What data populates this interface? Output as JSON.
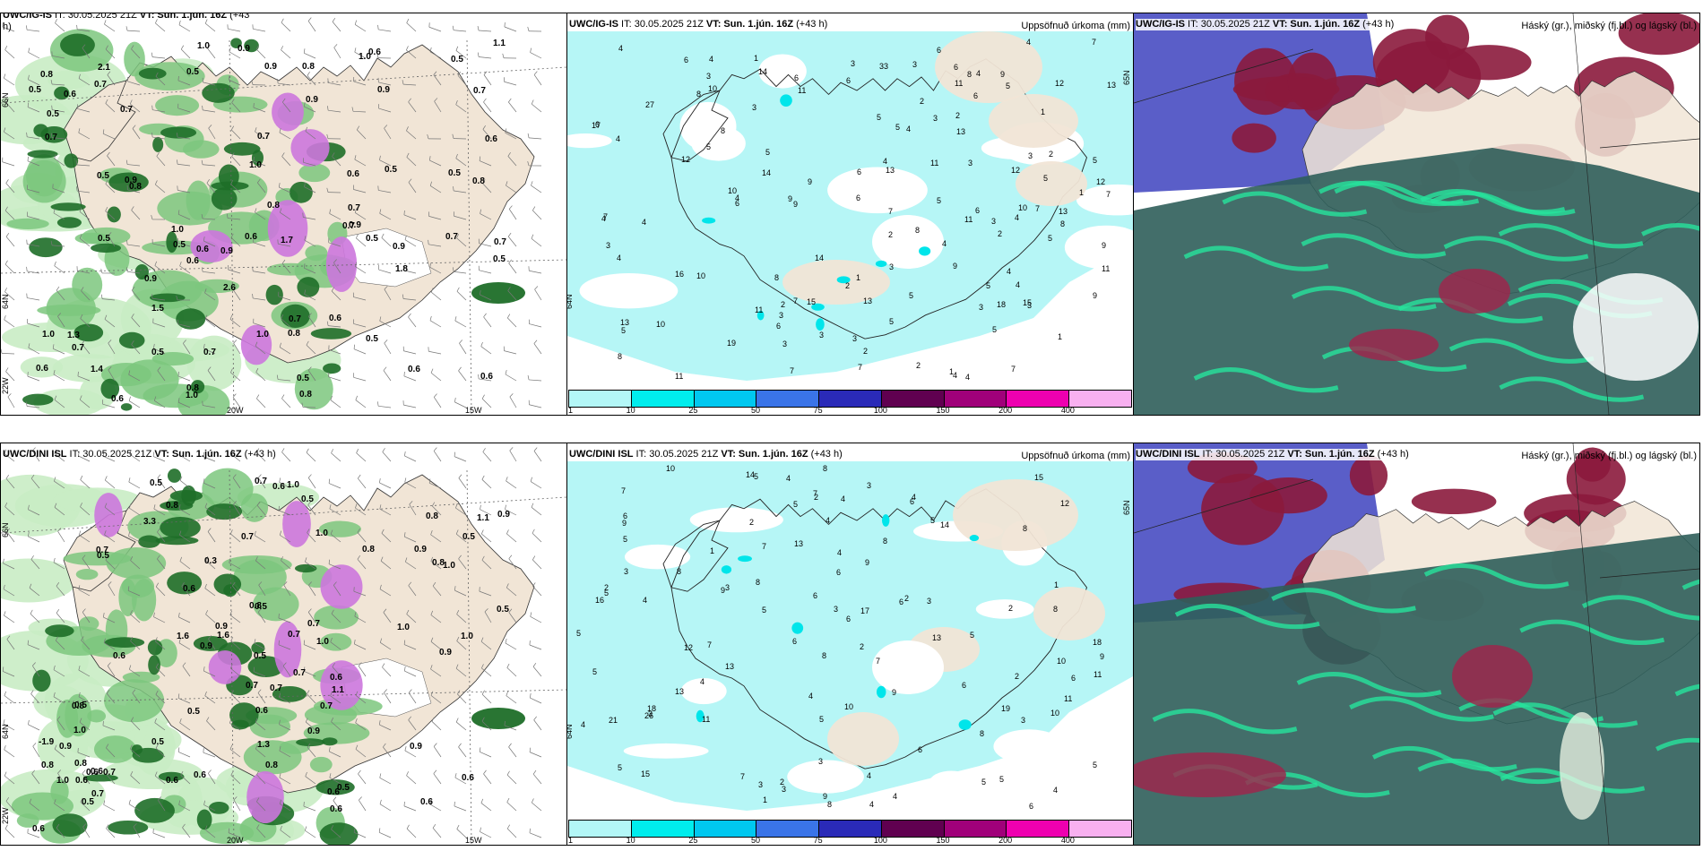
{
  "panels": {
    "p1": {
      "model": "UWC/IG-IS",
      "info": " IT: 30.05.2025 21Z ",
      "vt": "VT: Sun. 1.jún. 16Z",
      "lead": " (+43",
      "lead2": "h)"
    },
    "p2": {
      "model": "UWC/IG-IS",
      "info": " IT: 30.05.2025 21Z ",
      "vt": "VT: Sun. 1.jún. 16Z",
      "lead": " (+43 h)",
      "right": "Uppsöfnuð úrkoma (mm)"
    },
    "p3": {
      "model": "UWC/IG-IS",
      "info": " IT: 30.05.2025 21Z ",
      "vt": "VT: Sun. 1.jún. 16Z",
      "lead": " (+43 h)",
      "right": "Háský (gr.), miðský (fj.bl.) og lágský (bl.)"
    },
    "p4": {
      "model": "UWC/DINI ISL",
      "info": " IT: 30.05.2025 21Z ",
      "vt": "VT: Sun. 1.jún. 16Z",
      "lead": " (+43 h)"
    },
    "p5": {
      "model": "UWC/DINI ISL",
      "info": " IT: 30.05.2025 21Z ",
      "vt": "VT: Sun. 1.jún. 16Z",
      "lead": " (+43 h)",
      "right": "Uppsöfnuð úrkoma (mm)"
    },
    "p6": {
      "model": "UWC/DINI ISL",
      "info": " IT: 30.05.2025 21Z ",
      "vt": "VT: Sun. 1.jún. 16Z",
      "lead": " (+43 h)",
      "right": "Háský (gr.), miðský (fj.bl.) og lágský (bl.)"
    }
  },
  "axes": {
    "lat_66": "66N",
    "lat_64": "64N",
    "lon_22": "22W",
    "lon_20": "20W",
    "lon_15": "15W",
    "lat_65": "65N"
  },
  "colorbar": {
    "ticks": [
      "1",
      "10",
      "25",
      "50",
      "75",
      "100",
      "150",
      "200",
      "400"
    ],
    "colors": [
      "#b3f7f7",
      "#00eded",
      "#00c8f0",
      "#3a74e8",
      "#2a2ab8",
      "#600050",
      "#a0007a",
      "#ee00b0",
      "#f8b0f0"
    ]
  },
  "colors": {
    "land": "#f1e5d6",
    "precip_light": "#b6f6f6",
    "green_light": "#c9ecc4",
    "green_dark": "#1e6e28",
    "purple": "#cc77dd"
  },
  "precip_values_p2": [
    "3",
    "5",
    "5",
    "6",
    "5",
    "4",
    "7",
    "4",
    "3",
    "2",
    "1",
    "5",
    "4",
    "13",
    "5",
    "12",
    "8",
    "6",
    "9",
    "10",
    "11",
    "13",
    "10",
    "4",
    "6",
    "5",
    "7",
    "8",
    "6",
    "11",
    "8",
    "7",
    "11",
    "6",
    "12",
    "11",
    "9",
    "5",
    "10",
    "8",
    "9",
    "7",
    "11",
    "13",
    "3",
    "4",
    "6",
    "8",
    "6",
    "2",
    "5",
    "18",
    "9",
    "27",
    "16",
    "12",
    "13",
    "10",
    "4",
    "5",
    "6",
    "5",
    "7",
    "6",
    "14",
    "12",
    "11",
    "17",
    "15",
    "8",
    "7",
    "5",
    "4",
    "3",
    "2",
    "4",
    "3",
    "1",
    "4",
    "3",
    "9",
    "9",
    "10",
    "3",
    "6",
    "14",
    "19",
    "14",
    "9",
    "4",
    "8",
    "3",
    "4",
    "2",
    "2",
    "5",
    "6",
    "4",
    "3",
    "2",
    "1",
    "3",
    "2",
    "3",
    "4",
    "5",
    "4",
    "6",
    "7",
    "7",
    "4",
    "3",
    "1",
    "1",
    "2",
    "3",
    "4",
    "3",
    "5",
    "2",
    "13",
    "11",
    "13",
    "33",
    "15",
    "7",
    "4",
    "3",
    "1",
    "3"
  ],
  "precip_values_p5": [
    "4",
    "5",
    "3",
    "4",
    "5",
    "3",
    "6",
    "9",
    "5",
    "7",
    "8",
    "5",
    "6",
    "4",
    "17",
    "15",
    "13",
    "11",
    "9",
    "8",
    "10",
    "5",
    "4",
    "6",
    "7",
    "9",
    "3",
    "8",
    "6",
    "10",
    "5",
    "8",
    "5",
    "14",
    "12",
    "14",
    "18",
    "16",
    "13",
    "11",
    "7",
    "6",
    "8",
    "5",
    "10",
    "9",
    "4",
    "6",
    "5",
    "21",
    "8",
    "12",
    "13",
    "4",
    "26",
    "15",
    "9",
    "7",
    "5",
    "4",
    "4",
    "3",
    "2",
    "5",
    "3",
    "4",
    "3",
    "2",
    "6",
    "19",
    "13",
    "18",
    "11",
    "8",
    "7",
    "4",
    "3",
    "2",
    "2",
    "6",
    "2",
    "5",
    "3",
    "2",
    "1",
    "1",
    "2",
    "1",
    "2",
    "3",
    "4",
    "6",
    "7",
    "8",
    "9",
    "4",
    "5",
    "8",
    "6",
    "3",
    "4",
    "5",
    "10",
    "6"
  ],
  "cloud_values_p1": [
    "2.6",
    "0.5",
    "0.7",
    "0.7",
    "0.5",
    "1.0",
    "0.9",
    "0.7",
    "0.6",
    "0.8",
    "1.0",
    "0.7",
    "0.5",
    "0.6",
    "0.8",
    "0.6",
    "0.5",
    "0.8",
    "1.0",
    "0.8",
    "0.6",
    "0.7",
    "0.6",
    "0.5",
    "0.7",
    "0.9",
    "0.7",
    "0.5",
    "0.8",
    "0.9",
    "1.0",
    "0.8",
    "0.6",
    "0.5",
    "0.7",
    "0.6",
    "1.1",
    "0.9",
    "1.0",
    "0.7",
    "0.5",
    "0.6",
    "0.8",
    "0.9",
    "0.7",
    "0.5",
    "1.0",
    "0.9",
    "0.6",
    "0.5",
    "0.8",
    "0.7",
    "0.6",
    "0.5",
    "0.9",
    "1.3",
    "1.5",
    "2.1",
    "1.8",
    "1.7",
    "0.6",
    "0.7",
    "0.5",
    "0.5",
    "0.9",
    "1.0",
    "1.4",
    "0.5",
    "0.6",
    "0.9"
  ],
  "cloud_values_p4": [
    "3.3",
    "1.0",
    "1.6",
    "0.6",
    "1.0",
    "0.5",
    "1.0",
    "0.6",
    "0.5",
    "1.1",
    "0.9",
    "0.8",
    "0.7",
    "0.9",
    "0.6",
    "0.5",
    "0.7",
    "0.8",
    "1.0",
    "0.6",
    "0.5",
    "0.9",
    "1.0",
    "0.8",
    "0.7",
    "0.6",
    "0.5",
    "1.0",
    "0.9",
    "0.8",
    "0.7",
    "0.6",
    "0.8",
    "0.5",
    "0.9",
    "1.0",
    "0.7",
    "0.6",
    "0.5",
    "1.1",
    "0.8",
    "0.7",
    "0.5",
    "0.6",
    "0.9",
    "1.0",
    "0.7",
    "0.8",
    "0.6",
    "0.5",
    "1.6",
    "0.7",
    "0.8",
    "-1.9",
    "0.6",
    "0.9",
    "0.6",
    "0.7",
    "0.6",
    "0.8",
    "0.7",
    "0.6",
    "0.5",
    "0.6",
    "0.7",
    "0.5",
    "0.3",
    "1.3",
    "0.9",
    "0.6",
    "0.5"
  ]
}
